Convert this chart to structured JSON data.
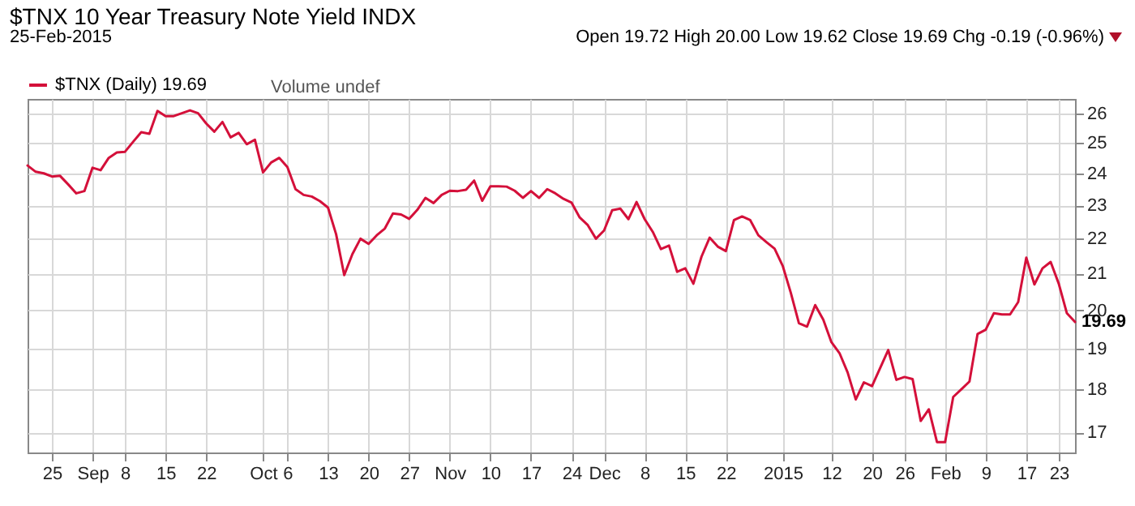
{
  "chart_data": {
    "type": "line",
    "title": "$TNX 10 Year Treasury Note Yield INDX",
    "subtitle": "25-Feb-2015",
    "annotations": [
      "Open 19.72 High 20.00 Low 19.62 Close 19.69 Chg -0.19 (-0.96%)",
      "Volume undef",
      "19.69"
    ],
    "categories": [
      null,
      null,
      null,
      "25",
      null,
      null,
      null,
      null,
      "Sep",
      null,
      null,
      null,
      "8",
      null,
      null,
      null,
      null,
      "15",
      null,
      null,
      null,
      null,
      "22",
      null,
      null,
      null,
      null,
      null,
      null,
      "Oct",
      null,
      null,
      "6",
      null,
      null,
      null,
      null,
      "13",
      null,
      null,
      null,
      null,
      "20",
      null,
      null,
      null,
      null,
      "27",
      null,
      null,
      null,
      null,
      "Nov",
      null,
      null,
      null,
      null,
      "10",
      null,
      null,
      null,
      null,
      "17",
      null,
      null,
      null,
      null,
      "24",
      null,
      null,
      null,
      "Dec",
      null,
      null,
      null,
      null,
      "8",
      null,
      null,
      null,
      null,
      "15",
      null,
      null,
      null,
      null,
      "22",
      null,
      null,
      null,
      null,
      null,
      null,
      "2015",
      null,
      null,
      null,
      null,
      null,
      "12",
      null,
      null,
      null,
      null,
      "20",
      null,
      null,
      null,
      "26",
      null,
      null,
      null,
      null,
      "Feb",
      null,
      null,
      null,
      null,
      "9",
      null,
      null,
      null,
      null,
      "17",
      null,
      null,
      null,
      "23",
      null,
      null
    ],
    "series": [
      {
        "name": "$TNX (Daily) 19.69",
        "color": "#d4103a",
        "values": [
          24.25,
          24.05,
          24.0,
          23.9,
          23.92,
          23.65,
          23.37,
          23.44,
          24.18,
          24.1,
          24.5,
          24.68,
          24.7,
          25.03,
          25.35,
          25.3,
          26.08,
          25.9,
          25.9,
          26.0,
          26.1,
          26.0,
          25.65,
          25.37,
          25.7,
          25.18,
          25.33,
          24.95,
          25.1,
          24.03,
          24.35,
          24.5,
          24.2,
          23.5,
          23.32,
          23.27,
          23.13,
          22.93,
          22.13,
          20.96,
          21.55,
          22.0,
          21.85,
          22.1,
          22.3,
          22.75,
          22.72,
          22.59,
          22.86,
          23.23,
          23.07,
          23.32,
          23.45,
          23.44,
          23.48,
          23.77,
          23.14,
          23.59,
          23.59,
          23.58,
          23.45,
          23.23,
          23.44,
          23.23,
          23.5,
          23.37,
          23.2,
          23.08,
          22.63,
          22.4,
          22.0,
          22.24,
          22.85,
          22.9,
          22.58,
          23.1,
          22.58,
          22.2,
          21.7,
          21.8,
          21.05,
          21.15,
          20.72,
          21.48,
          22.03,
          21.77,
          21.64,
          22.55,
          22.66,
          22.55,
          22.1,
          21.9,
          21.71,
          21.22,
          20.47,
          19.66,
          19.57,
          20.14,
          19.75,
          19.17,
          18.89,
          18.41,
          17.76,
          18.17,
          18.08,
          18.52,
          18.97,
          18.23,
          18.3,
          18.25,
          17.26,
          17.53,
          16.78,
          16.78,
          17.82,
          18.0,
          18.19,
          19.38,
          19.49,
          19.92,
          19.89,
          19.89,
          20.22,
          21.45,
          20.7,
          21.15,
          21.33,
          20.72,
          19.92,
          19.69
        ]
      }
    ],
    "ylim": [
      16.55,
      26.5
    ],
    "yticks": [
      17,
      18,
      19,
      20,
      21,
      22,
      23,
      24,
      25,
      26
    ],
    "log": true,
    "grid": true,
    "legend": "top left"
  }
}
